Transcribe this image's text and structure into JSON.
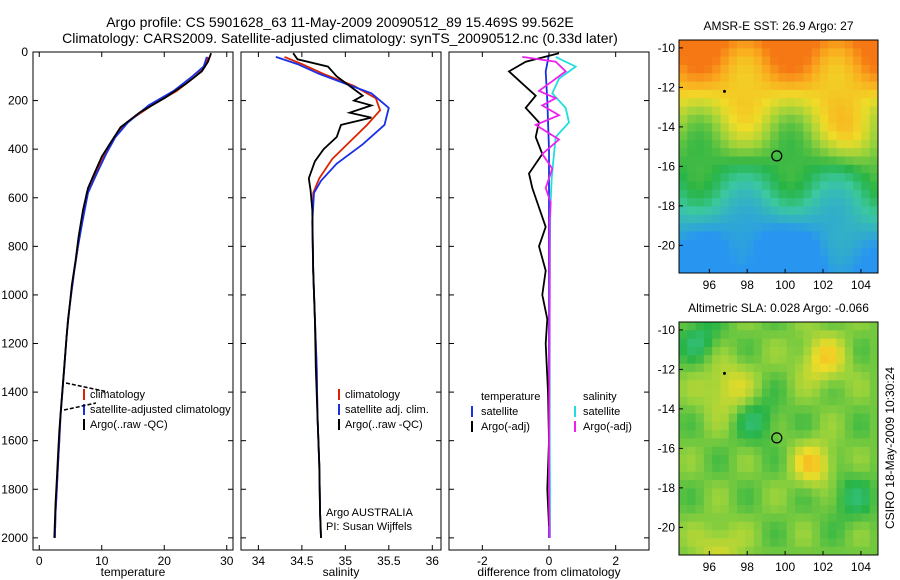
{
  "header": {
    "line1": "Argo profile: CS 5901628_63 11-May-2009 20090512_89 15.469S 99.562E",
    "line2": "Climatology: CARS2009. Satellite-adjusted climatology: synTS_20090512.nc (0.33d later)"
  },
  "side_label": "CSIRO 18-May-2009 10:30:24",
  "colors": {
    "climatology": "#dd2200",
    "satellite": "#1a2fe6",
    "argo": "#000000",
    "sat_salinity": "#22dddd",
    "argo_salinity": "#ee22ee"
  },
  "chart_data": [
    {
      "type": "line",
      "xlabel": "temperature",
      "xlim": [
        -1,
        31
      ],
      "ylim": [
        2050,
        0
      ],
      "xticks": [
        0,
        10,
        20,
        30
      ],
      "yticks": [
        0,
        200,
        400,
        600,
        800,
        1000,
        1200,
        1400,
        1600,
        1800,
        2000
      ],
      "legend": [
        "climatology",
        "satellite-adjusted climatology",
        "Argo(..raw -QC)"
      ],
      "series": [
        {
          "name": "climatology",
          "color": "#dd2200",
          "points": [
            [
              27,
              20
            ],
            [
              26.5,
              60
            ],
            [
              25,
              100
            ],
            [
              22,
              160
            ],
            [
              18,
              220
            ],
            [
              14,
              290
            ],
            [
              12,
              350
            ],
            [
              10.5,
              420
            ],
            [
              9,
              500
            ],
            [
              7.6,
              580
            ],
            [
              6.8,
              700
            ],
            [
              6.2,
              800
            ],
            [
              5.6,
              900
            ],
            [
              5.1,
              1000
            ],
            [
              4.6,
              1100
            ],
            [
              4.3,
              1200
            ],
            [
              4.0,
              1300
            ],
            [
              3.7,
              1400
            ],
            [
              3.4,
              1500
            ],
            [
              3.2,
              1600
            ],
            [
              3.0,
              1700
            ],
            [
              2.8,
              1800
            ],
            [
              2.6,
              1900
            ],
            [
              2.5,
              2000
            ]
          ]
        },
        {
          "name": "satellite-adjusted climatology",
          "color": "#1a2fe6",
          "points": [
            [
              26.8,
              20
            ],
            [
              26.3,
              60
            ],
            [
              24.5,
              100
            ],
            [
              21.5,
              160
            ],
            [
              17.5,
              220
            ],
            [
              14.2,
              290
            ],
            [
              12.2,
              350
            ],
            [
              10.7,
              420
            ],
            [
              9.2,
              500
            ],
            [
              7.8,
              580
            ],
            [
              6.9,
              700
            ],
            [
              6.2,
              800
            ],
            [
              5.6,
              900
            ],
            [
              5.1,
              1000
            ],
            [
              4.6,
              1100
            ],
            [
              4.3,
              1200
            ],
            [
              4.0,
              1300
            ],
            [
              3.7,
              1400
            ],
            [
              3.4,
              1500
            ],
            [
              3.2,
              1600
            ],
            [
              3.0,
              1700
            ],
            [
              2.8,
              1800
            ],
            [
              2.6,
              1900
            ],
            [
              2.5,
              2000
            ]
          ]
        },
        {
          "name": "Argo(..raw -QC)",
          "color": "#000000",
          "points": [
            [
              27.5,
              5
            ],
            [
              27,
              40
            ],
            [
              26,
              80
            ],
            [
              23.5,
              130
            ],
            [
              20,
              190
            ],
            [
              16,
              250
            ],
            [
              13,
              310
            ],
            [
              11.5,
              370
            ],
            [
              10,
              430
            ],
            [
              8.8,
              500
            ],
            [
              7.8,
              560
            ],
            [
              7,
              650
            ],
            [
              6.3,
              760
            ],
            [
              5.8,
              860
            ],
            [
              5.2,
              960
            ],
            [
              4.8,
              1060
            ],
            [
              4.4,
              1160
            ],
            [
              4.1,
              1260
            ],
            [
              3.8,
              1360
            ],
            [
              3.5,
              1460
            ],
            [
              3.2,
              1560
            ],
            [
              3.0,
              1660
            ],
            [
              2.8,
              1760
            ],
            [
              2.6,
              1860
            ],
            [
              2.4,
              2000
            ]
          ]
        }
      ]
    },
    {
      "type": "line",
      "xlabel": "salinity",
      "xlim": [
        33.8,
        36.1
      ],
      "ylim": [
        2050,
        0
      ],
      "xticks": [
        34,
        34.5,
        35,
        35.5,
        36
      ],
      "legend": [
        "climatology",
        "satellite adj. clim.",
        "Argo(..raw -QC)"
      ],
      "annotation": [
        "Argo AUSTRALIA",
        "PI: Susan Wijffels"
      ],
      "series": [
        {
          "name": "climatology",
          "color": "#dd2200",
          "points": [
            [
              34.3,
              20
            ],
            [
              34.5,
              50
            ],
            [
              34.75,
              90
            ],
            [
              35.1,
              140
            ],
            [
              35.35,
              190
            ],
            [
              35.4,
              240
            ],
            [
              35.25,
              300
            ],
            [
              35.05,
              370
            ],
            [
              34.85,
              440
            ],
            [
              34.7,
              520
            ],
            [
              34.63,
              580
            ],
            [
              34.62,
              700
            ],
            [
              34.63,
              900
            ],
            [
              34.65,
              1100
            ],
            [
              34.67,
              1300
            ],
            [
              34.68,
              1500
            ],
            [
              34.7,
              1700
            ],
            [
              34.71,
              1900
            ],
            [
              34.72,
              2000
            ]
          ]
        },
        {
          "name": "satellite adj. clim.",
          "color": "#1a2fe6",
          "points": [
            [
              34.2,
              20
            ],
            [
              34.45,
              50
            ],
            [
              34.7,
              90
            ],
            [
              35.0,
              130
            ],
            [
              35.3,
              170
            ],
            [
              35.5,
              230
            ],
            [
              35.45,
              300
            ],
            [
              35.2,
              380
            ],
            [
              34.9,
              460
            ],
            [
              34.72,
              530
            ],
            [
              34.64,
              580
            ],
            [
              34.62,
              700
            ],
            [
              34.63,
              900
            ],
            [
              34.65,
              1100
            ],
            [
              34.67,
              1300
            ],
            [
              34.68,
              1500
            ],
            [
              34.7,
              1700
            ],
            [
              34.71,
              1900
            ],
            [
              34.72,
              2000
            ]
          ]
        },
        {
          "name": "Argo(..raw -QC)",
          "color": "#000000",
          "points": [
            [
              34.4,
              5
            ],
            [
              34.45,
              30
            ],
            [
              34.8,
              60
            ],
            [
              34.9,
              100
            ],
            [
              35.05,
              140
            ],
            [
              35.2,
              180
            ],
            [
              35.1,
              200
            ],
            [
              35.3,
              220
            ],
            [
              35.05,
              250
            ],
            [
              35.3,
              270
            ],
            [
              34.95,
              300
            ],
            [
              34.9,
              350
            ],
            [
              34.75,
              400
            ],
            [
              34.65,
              450
            ],
            [
              34.58,
              520
            ],
            [
              34.6,
              570
            ],
            [
              34.62,
              650
            ],
            [
              34.63,
              900
            ],
            [
              34.65,
              1100
            ],
            [
              34.66,
              1300
            ],
            [
              34.68,
              1500
            ],
            [
              34.7,
              1700
            ],
            [
              34.71,
              1900
            ],
            [
              34.72,
              2000
            ]
          ]
        }
      ]
    },
    {
      "type": "line",
      "xlabel": "difference from climatology",
      "xlim": [
        -3,
        3
      ],
      "ylim": [
        2050,
        0
      ],
      "xticks": [
        -2,
        0,
        2
      ],
      "legend": {
        "left_heading": "temperature",
        "right_heading": "salinity",
        "left": [
          "satellite",
          "Argo(-adj)"
        ],
        "right": [
          "satellite",
          "Argo(-adj)"
        ]
      },
      "series": [
        {
          "name": "satellite",
          "group": "temperature",
          "color": "#1a2fe6",
          "points": [
            [
              0,
              10
            ],
            [
              -0.1,
              80
            ],
            [
              -0.05,
              200
            ],
            [
              0,
              400
            ],
            [
              0,
              700
            ],
            [
              0,
              1000
            ],
            [
              0,
              1500
            ],
            [
              0,
              2000
            ]
          ]
        },
        {
          "name": "Argo(-adj)",
          "group": "temperature",
          "color": "#000000",
          "points": [
            [
              0.3,
              5
            ],
            [
              -0.7,
              40
            ],
            [
              -1.2,
              80
            ],
            [
              -0.8,
              130
            ],
            [
              -0.4,
              180
            ],
            [
              -0.7,
              230
            ],
            [
              -0.3,
              290
            ],
            [
              -0.4,
              350
            ],
            [
              -0.2,
              420
            ],
            [
              -0.6,
              500
            ],
            [
              -0.5,
              560
            ],
            [
              -0.3,
              640
            ],
            [
              -0.1,
              720
            ],
            [
              -0.3,
              800
            ],
            [
              -0.1,
              900
            ],
            [
              -0.2,
              1000
            ],
            [
              -0.05,
              1100
            ],
            [
              -0.1,
              1200
            ],
            [
              -0.03,
              1400
            ],
            [
              0,
              1600
            ],
            [
              -0.05,
              1800
            ],
            [
              0,
              1950
            ]
          ]
        },
        {
          "name": "satellite",
          "group": "salinity",
          "color": "#22dddd",
          "points": [
            [
              0.2,
              20
            ],
            [
              0.8,
              60
            ],
            [
              0.3,
              110
            ],
            [
              0.1,
              170
            ],
            [
              0.5,
              230
            ],
            [
              0.6,
              290
            ],
            [
              0.2,
              350
            ],
            [
              0.15,
              420
            ],
            [
              0.08,
              520
            ],
            [
              0.04,
              650
            ],
            [
              0.03,
              800
            ],
            [
              0.02,
              1000
            ],
            [
              0.02,
              1300
            ],
            [
              0.02,
              1600
            ],
            [
              0.03,
              1800
            ],
            [
              0.03,
              2000
            ]
          ]
        },
        {
          "name": "Argo(-adj)",
          "group": "salinity",
          "color": "#ee22ee",
          "points": [
            [
              -0.8,
              20
            ],
            [
              0.2,
              40
            ],
            [
              0.5,
              80
            ],
            [
              0.1,
              120
            ],
            [
              -0.3,
              160
            ],
            [
              0.2,
              190
            ],
            [
              -0.2,
              220
            ],
            [
              0.3,
              260
            ],
            [
              -0.4,
              300
            ],
            [
              0.3,
              360
            ],
            [
              -0.2,
              420
            ],
            [
              0.1,
              480
            ],
            [
              -0.1,
              560
            ],
            [
              0.05,
              620
            ],
            [
              0.02,
              700
            ],
            [
              0.02,
              1000
            ],
            [
              0.01,
              1400
            ],
            [
              0,
              1800
            ],
            [
              0.02,
              2000
            ]
          ]
        }
      ]
    },
    {
      "type": "heatmap",
      "title": "AMSR-E SST: 26.9 Argo: 27",
      "xlim": [
        94.4,
        104.9
      ],
      "ylim": [
        -21.4,
        -9.6
      ],
      "xticks": [
        96,
        98,
        100,
        102,
        104
      ],
      "yticks": [
        -10,
        -12,
        -14,
        -16,
        -18,
        -20
      ],
      "marker": [
        99.56,
        -15.47
      ],
      "track_point": [
        96.8,
        -12.2
      ]
    },
    {
      "type": "heatmap",
      "title": "Altimetric SLA: 0.028 Argo: -0.066",
      "xlim": [
        94.4,
        104.9
      ],
      "ylim": [
        -21.4,
        -9.6
      ],
      "xticks": [
        96,
        98,
        100,
        102,
        104
      ],
      "yticks": [
        -10,
        -12,
        -14,
        -16,
        -18,
        -20
      ],
      "marker": [
        99.56,
        -15.47
      ],
      "track_point": [
        96.8,
        -12.2
      ]
    }
  ]
}
